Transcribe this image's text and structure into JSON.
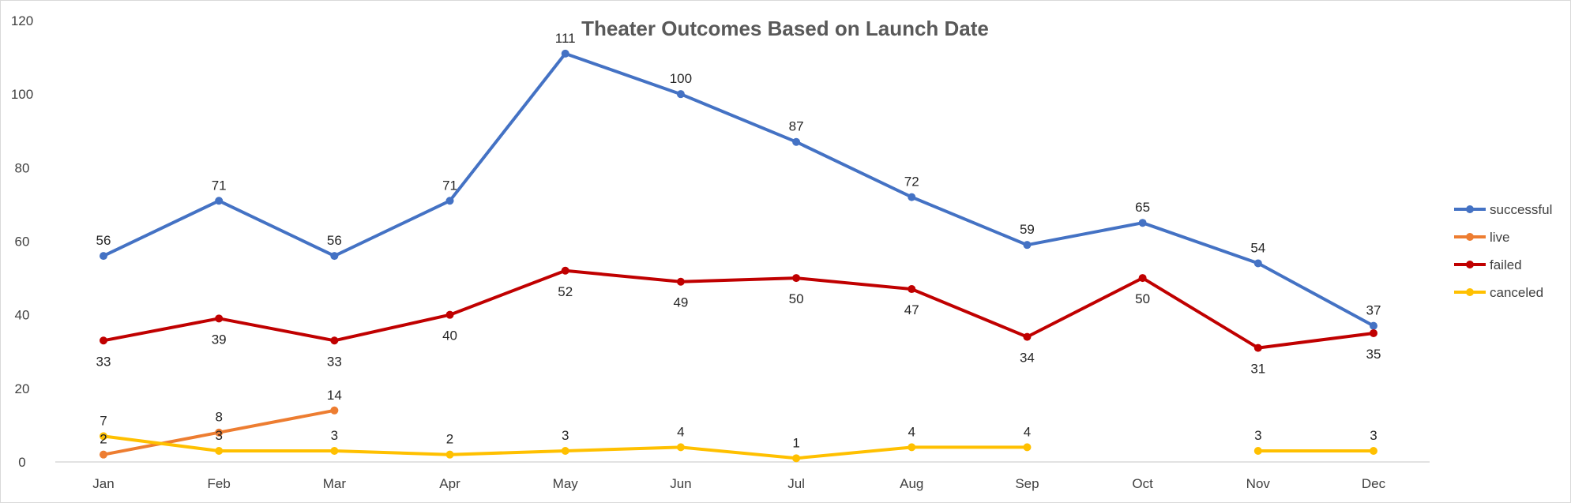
{
  "chart_data": {
    "type": "line",
    "title": "Theater Outcomes Based on Launch Date",
    "xlabel": "",
    "ylabel": "",
    "ylim": [
      0,
      120
    ],
    "yticks": [
      0,
      20,
      40,
      60,
      80,
      100,
      120
    ],
    "grid": false,
    "legend_position": "right",
    "categories": [
      "Jan",
      "Feb",
      "Mar",
      "Apr",
      "May",
      "Jun",
      "Jul",
      "Aug",
      "Sep",
      "Oct",
      "Nov",
      "Dec"
    ],
    "series": [
      {
        "name": "successful",
        "color": "#4472C4",
        "label_position": "above",
        "values": [
          56,
          71,
          56,
          71,
          111,
          100,
          87,
          72,
          59,
          65,
          54,
          37
        ]
      },
      {
        "name": "live",
        "color": "#ED7D31",
        "label_position": "above",
        "values": [
          2,
          8,
          14,
          null,
          null,
          null,
          null,
          null,
          null,
          null,
          null,
          null
        ]
      },
      {
        "name": "failed",
        "color": "#C00000",
        "label_position": "below",
        "values": [
          33,
          39,
          33,
          40,
          52,
          49,
          50,
          47,
          34,
          50,
          31,
          35
        ]
      },
      {
        "name": "canceled",
        "color": "#FFC000",
        "label_position": "above",
        "values": [
          7,
          3,
          3,
          2,
          3,
          4,
          1,
          4,
          4,
          null,
          3,
          3
        ]
      }
    ]
  }
}
